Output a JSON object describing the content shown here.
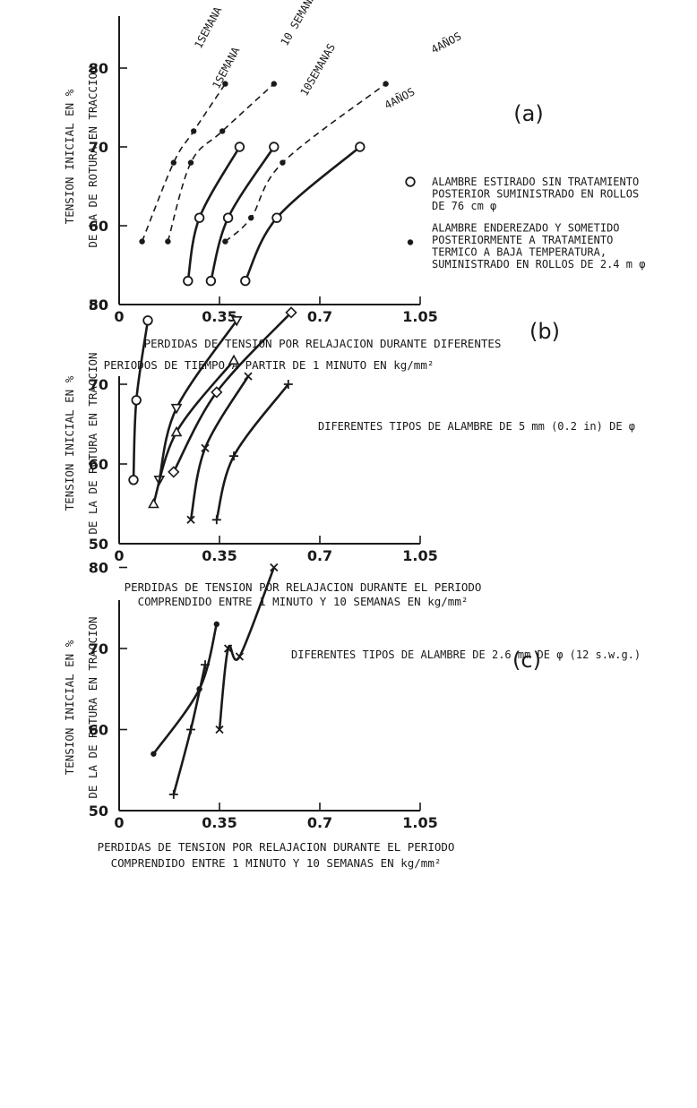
{
  "chart_data": [
    {
      "type": "line",
      "panel_label": "(a)",
      "ylabel": [
        "TENSION INICIAL EN %",
        "DE LA DE ROTURA EN TRACCION"
      ],
      "xlabel": [
        "PERDIDAS DE TENSION POR RELAJACION DURANTE DIFERENTES",
        "PERIODOS DE  TIEMPO A PARTIR DE 1 MINUTO EN kg/mm²"
      ],
      "x_ticks": [
        "0",
        "0.35",
        "0.7",
        "1.05"
      ],
      "y_ticks": [
        "50",
        "60",
        "70",
        "80"
      ],
      "xlim": [
        0,
        1.05
      ],
      "ylim": [
        50,
        85
      ],
      "legend": [
        {
          "marker": "open-circle",
          "text": [
            "ALAMBRE ESTIRADO SIN TRATAMIENTO",
            "POSTERIOR SUMINISTRADO EN ROLLOS",
            "DE 76 cm φ"
          ]
        },
        {
          "marker": "dot",
          "text": [
            "ALAMBRE ENDEREZADO Y SOMETIDO",
            "POSTERIORMENTE A TRATAMIENTO",
            "TERMICO A BAJA TEMPERATURA,",
            "SUMINISTRADO EN ROLLOS DE 2.4 m φ"
          ]
        }
      ],
      "series": [
        {
          "name": "1SEMANA",
          "marker": "dot",
          "style": "dashed",
          "x": [
            0.08,
            0.19,
            0.26,
            0.37
          ],
          "y": [
            58,
            68,
            72,
            78
          ]
        },
        {
          "name": "10 SEMANAS",
          "marker": "dot",
          "style": "dashed",
          "x": [
            0.17,
            0.25,
            0.36,
            0.54
          ],
          "y": [
            58,
            68,
            72,
            78
          ]
        },
        {
          "name": "4AÑOS",
          "marker": "dot",
          "style": "dashed",
          "x": [
            0.37,
            0.46,
            0.57,
            0.93
          ],
          "y": [
            58,
            61,
            68,
            78
          ]
        },
        {
          "name": "1SEMANA",
          "marker": "open-circle",
          "style": "solid",
          "x": [
            0.24,
            0.28,
            0.42
          ],
          "y": [
            53,
            61,
            70
          ]
        },
        {
          "name": "10SEMANAS",
          "marker": "open-circle",
          "style": "solid",
          "x": [
            0.32,
            0.38,
            0.54
          ],
          "y": [
            53,
            61,
            70
          ]
        },
        {
          "name": "4AÑOS",
          "marker": "open-circle",
          "style": "solid",
          "x": [
            0.44,
            0.55,
            0.84
          ],
          "y": [
            53,
            61,
            70
          ]
        }
      ]
    },
    {
      "type": "line",
      "panel_label": "(b)",
      "ylabel": [
        "TENSION INICIAL EN %",
        "DE LA DE ROTURA EN TRACCION"
      ],
      "xlabel": [
        "PERDIDAS DE TENSION POR RELAJACION DURANTE EL PERIODO",
        "COMPRENDIDO ENTRE 1 MINUTO Y 10 SEMANAS EN kg/mm²"
      ],
      "x_ticks": [
        "0",
        "0.35",
        "0.7",
        "1.05"
      ],
      "y_ticks": [
        "50",
        "60",
        "70",
        "80"
      ],
      "xlim": [
        0,
        1.05
      ],
      "ylim": [
        50,
        85
      ],
      "annotation": "DIFERENTES TIPOS DE ALAMBRE DE 5 mm (0.2 in) DE φ",
      "series": [
        {
          "marker": "open-circle",
          "x": [
            0.05,
            0.06,
            0.1
          ],
          "y": [
            58,
            68,
            78
          ]
        },
        {
          "marker": "triangle-down",
          "x": [
            0.14,
            0.2,
            0.41
          ],
          "y": [
            58,
            67,
            78
          ]
        },
        {
          "marker": "triangle-up",
          "x": [
            0.12,
            0.2,
            0.4
          ],
          "y": [
            55,
            64,
            73
          ]
        },
        {
          "marker": "diamond",
          "x": [
            0.19,
            0.34,
            0.6
          ],
          "y": [
            59,
            69,
            79
          ]
        },
        {
          "marker": "cross",
          "x": [
            0.25,
            0.3,
            0.45
          ],
          "y": [
            53,
            62,
            71
          ]
        },
        {
          "marker": "plus",
          "x": [
            0.34,
            0.4,
            0.59
          ],
          "y": [
            53,
            61,
            70
          ]
        }
      ]
    },
    {
      "type": "line",
      "panel_label": "(c)",
      "ylabel": [
        "TENSION INICIAL EN %",
        "DE LA DE ROTURA EN TRACCION"
      ],
      "xlabel": [
        "PERDIDAS DE TENSION POR RELAJACION DURANTE EL PERIODO",
        "COMPRENDIDO ENTRE 1 MINUTO Y 10 SEMANAS EN kg/mm²"
      ],
      "x_ticks": [
        "0",
        "0.35",
        "0.7",
        "1.05"
      ],
      "y_ticks": [
        "50",
        "60",
        "70",
        "80"
      ],
      "xlim": [
        0,
        1.05
      ],
      "ylim": [
        50,
        85
      ],
      "annotation": "DIFERENTES TIPOS DE ALAMBRE DE  2.6 mm DE φ (12 s.w.g.)",
      "series": [
        {
          "marker": "dot",
          "x": [
            0.12,
            0.28,
            0.34
          ],
          "y": [
            57,
            65,
            73
          ]
        },
        {
          "marker": "plus",
          "x": [
            0.19,
            0.25,
            0.3
          ],
          "y": [
            52,
            60,
            68
          ]
        },
        {
          "marker": "cross",
          "x": [
            0.35,
            0.38,
            0.42,
            0.54
          ],
          "y": [
            60,
            70,
            69,
            80
          ]
        }
      ]
    }
  ]
}
